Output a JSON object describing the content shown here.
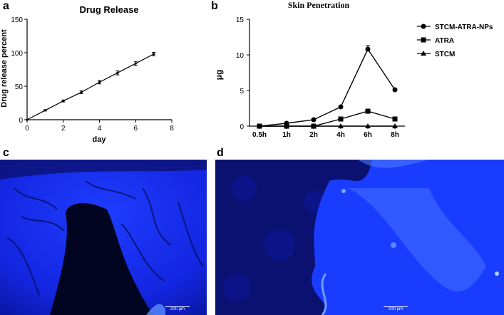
{
  "panels": {
    "a": "a",
    "b": "b",
    "c": "c",
    "d": "d"
  },
  "chart_data": [
    {
      "type": "line",
      "title": "Drug Release",
      "xlabel": "day",
      "ylabel": "Drug release percent",
      "xlim": [
        0,
        8
      ],
      "ylim": [
        0,
        150
      ],
      "xticks": [
        "0",
        "2",
        "4",
        "6",
        "8"
      ],
      "yticks": [
        "0",
        "50",
        "100",
        "150"
      ],
      "x": [
        0,
        1,
        2,
        3,
        4,
        5,
        6,
        7
      ],
      "series": [
        {
          "name": "Drug Release",
          "values": [
            0,
            14,
            28,
            41,
            56,
            70,
            84,
            98
          ],
          "errors": [
            0,
            1,
            1.5,
            2,
            2.5,
            3,
            3,
            2.5
          ]
        }
      ]
    },
    {
      "type": "line",
      "title": "Skin Penetration",
      "xlabel": "",
      "ylabel": "μg",
      "ylim": [
        0,
        15
      ],
      "yticks": [
        "0",
        "5",
        "10",
        "15"
      ],
      "categories": [
        "0.5h",
        "1h",
        "2h",
        "4h",
        "6h",
        "8h"
      ],
      "series": [
        {
          "name": "STCM-ATRA-NPs",
          "marker": "circle",
          "values": [
            0,
            0.4,
            0.9,
            2.7,
            10.8,
            5.1
          ],
          "errors": [
            0,
            0,
            0,
            0,
            0.5,
            0.2
          ]
        },
        {
          "name": "ATRA",
          "marker": "square",
          "values": [
            0,
            0,
            0,
            1.0,
            2.1,
            1.0
          ],
          "errors": [
            0,
            0,
            0,
            0,
            0,
            0
          ]
        },
        {
          "name": "STCM",
          "marker": "triangle",
          "values": [
            0,
            0,
            0,
            0,
            0,
            0
          ],
          "errors": [
            0,
            0,
            0,
            0,
            0,
            0
          ]
        }
      ]
    }
  ],
  "images": {
    "c": {
      "description": "fluorescence micrograph",
      "scale_label": "200 μm"
    },
    "d": {
      "description": "fluorescence micrograph",
      "scale_label": "200 μm"
    }
  }
}
